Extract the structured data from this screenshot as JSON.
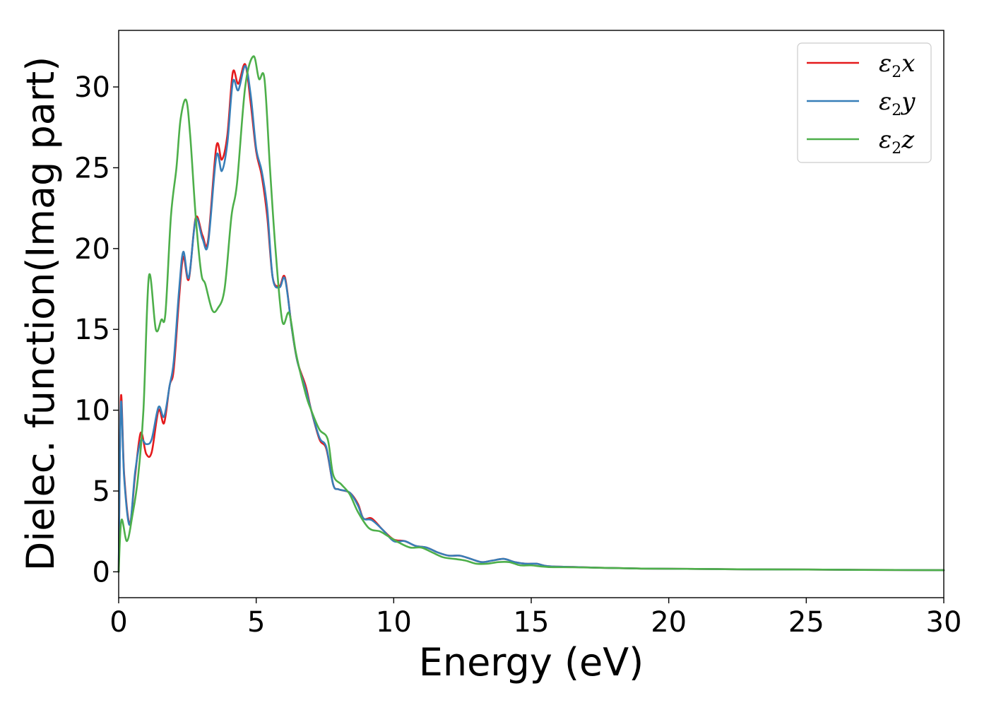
{
  "chart_data": {
    "type": "line",
    "xlabel": "Energy (eV)",
    "ylabel": "Dielec. function(Imag part)",
    "xlim": [
      0,
      30
    ],
    "ylim": [
      -1.6,
      33.5
    ],
    "xticks": [
      0,
      5,
      10,
      15,
      20,
      25,
      30
    ],
    "yticks": [
      0,
      5,
      10,
      15,
      20,
      25,
      30
    ],
    "grid": false,
    "legend_position": "top-right",
    "series": [
      {
        "name": "ε2x",
        "legend_base": "ε",
        "legend_sub": "2",
        "legend_tail": "x",
        "color": "#e41a1c",
        "points": [
          [
            0,
            0
          ],
          [
            0.08,
            10.8
          ],
          [
            0.2,
            6
          ],
          [
            0.4,
            3
          ],
          [
            0.6,
            6
          ],
          [
            0.8,
            8.6
          ],
          [
            1.0,
            7.3
          ],
          [
            1.2,
            7.4
          ],
          [
            1.45,
            10
          ],
          [
            1.65,
            9.2
          ],
          [
            1.85,
            11.5
          ],
          [
            2.0,
            12.5
          ],
          [
            2.2,
            17
          ],
          [
            2.35,
            19.5
          ],
          [
            2.55,
            18.1
          ],
          [
            2.8,
            21.9
          ],
          [
            3.05,
            20.8
          ],
          [
            3.25,
            20.5
          ],
          [
            3.55,
            26.3
          ],
          [
            3.75,
            25.5
          ],
          [
            3.95,
            27
          ],
          [
            4.15,
            30.9
          ],
          [
            4.35,
            30.2
          ],
          [
            4.6,
            31.4
          ],
          [
            4.8,
            29
          ],
          [
            5.0,
            26
          ],
          [
            5.2,
            24.5
          ],
          [
            5.4,
            22
          ],
          [
            5.6,
            18.2
          ],
          [
            5.85,
            17.7
          ],
          [
            6.05,
            18.2
          ],
          [
            6.3,
            15
          ],
          [
            6.5,
            13
          ],
          [
            6.8,
            11.5
          ],
          [
            7.0,
            10
          ],
          [
            7.3,
            8.2
          ],
          [
            7.55,
            7.6
          ],
          [
            7.8,
            5.4
          ],
          [
            8.0,
            5.1
          ],
          [
            8.4,
            4.9
          ],
          [
            8.7,
            4.2
          ],
          [
            8.9,
            3.3
          ],
          [
            9.2,
            3.3
          ],
          [
            9.6,
            2.6
          ],
          [
            10.0,
            2.0
          ],
          [
            10.4,
            1.9
          ],
          [
            10.8,
            1.6
          ],
          [
            11.2,
            1.5
          ],
          [
            11.6,
            1.2
          ],
          [
            12.0,
            1.0
          ],
          [
            12.4,
            1.0
          ],
          [
            12.8,
            0.8
          ],
          [
            13.2,
            0.6
          ],
          [
            13.6,
            0.7
          ],
          [
            14.0,
            0.8
          ],
          [
            14.4,
            0.6
          ],
          [
            14.8,
            0.5
          ],
          [
            15.2,
            0.5
          ],
          [
            15.6,
            0.35
          ],
          [
            16.5,
            0.3
          ],
          [
            17.5,
            0.25
          ],
          [
            19,
            0.2
          ],
          [
            21,
            0.18
          ],
          [
            23,
            0.15
          ],
          [
            25,
            0.14
          ],
          [
            27,
            0.12
          ],
          [
            30,
            0.1
          ]
        ]
      },
      {
        "name": "ε2y",
        "legend_base": "ε",
        "legend_sub": "2",
        "legend_tail": "y",
        "color": "#377eb8",
        "points": [
          [
            0,
            0
          ],
          [
            0.08,
            10.4
          ],
          [
            0.2,
            5.8
          ],
          [
            0.4,
            2.9
          ],
          [
            0.6,
            6.2
          ],
          [
            0.8,
            8.1
          ],
          [
            1.0,
            7.9
          ],
          [
            1.2,
            8.2
          ],
          [
            1.45,
            10.2
          ],
          [
            1.65,
            9.6
          ],
          [
            1.85,
            11.5
          ],
          [
            2.0,
            13
          ],
          [
            2.2,
            17.5
          ],
          [
            2.35,
            19.8
          ],
          [
            2.55,
            18.2
          ],
          [
            2.8,
            21.8
          ],
          [
            3.05,
            20.6
          ],
          [
            3.25,
            20.3
          ],
          [
            3.55,
            25.7
          ],
          [
            3.75,
            24.8
          ],
          [
            3.95,
            26.5
          ],
          [
            4.15,
            30.3
          ],
          [
            4.35,
            29.8
          ],
          [
            4.6,
            31.3
          ],
          [
            4.8,
            29.5
          ],
          [
            5.0,
            26.2
          ],
          [
            5.2,
            24.8
          ],
          [
            5.4,
            22.5
          ],
          [
            5.6,
            18.2
          ],
          [
            5.85,
            17.6
          ],
          [
            6.05,
            18.1
          ],
          [
            6.3,
            15
          ],
          [
            6.5,
            13
          ],
          [
            6.8,
            11.3
          ],
          [
            7.0,
            10
          ],
          [
            7.3,
            8.3
          ],
          [
            7.55,
            7.7
          ],
          [
            7.8,
            5.4
          ],
          [
            8.0,
            5.1
          ],
          [
            8.4,
            4.9
          ],
          [
            8.7,
            4.1
          ],
          [
            8.9,
            3.3
          ],
          [
            9.2,
            3.2
          ],
          [
            9.6,
            2.6
          ],
          [
            10.0,
            1.9
          ],
          [
            10.4,
            1.9
          ],
          [
            10.8,
            1.6
          ],
          [
            11.2,
            1.5
          ],
          [
            11.6,
            1.2
          ],
          [
            12.0,
            1.0
          ],
          [
            12.4,
            1.0
          ],
          [
            12.8,
            0.8
          ],
          [
            13.2,
            0.6
          ],
          [
            13.6,
            0.7
          ],
          [
            14.0,
            0.8
          ],
          [
            14.4,
            0.6
          ],
          [
            14.8,
            0.5
          ],
          [
            15.2,
            0.5
          ],
          [
            15.6,
            0.35
          ],
          [
            16.5,
            0.3
          ],
          [
            17.5,
            0.25
          ],
          [
            19,
            0.2
          ],
          [
            21,
            0.18
          ],
          [
            23,
            0.15
          ],
          [
            25,
            0.14
          ],
          [
            27,
            0.12
          ],
          [
            30,
            0.1
          ]
        ]
      },
      {
        "name": "ε2z",
        "legend_base": "ε",
        "legend_sub": "2",
        "legend_tail": "z",
        "color": "#4daf4a",
        "points": [
          [
            0,
            0
          ],
          [
            0.1,
            3.2
          ],
          [
            0.3,
            1.9
          ],
          [
            0.5,
            3.5
          ],
          [
            0.7,
            5.8
          ],
          [
            0.9,
            10
          ],
          [
            1.1,
            18.3
          ],
          [
            1.35,
            15
          ],
          [
            1.55,
            15.6
          ],
          [
            1.7,
            16
          ],
          [
            1.9,
            22
          ],
          [
            2.1,
            25
          ],
          [
            2.25,
            28
          ],
          [
            2.45,
            29.2
          ],
          [
            2.6,
            27
          ],
          [
            2.8,
            22
          ],
          [
            3.0,
            18.5
          ],
          [
            3.15,
            17.8
          ],
          [
            3.4,
            16.2
          ],
          [
            3.6,
            16.3
          ],
          [
            3.85,
            17.5
          ],
          [
            4.1,
            22
          ],
          [
            4.3,
            24
          ],
          [
            4.6,
            30
          ],
          [
            4.9,
            31.9
          ],
          [
            5.1,
            30.5
          ],
          [
            5.3,
            30.5
          ],
          [
            5.5,
            25
          ],
          [
            5.7,
            20
          ],
          [
            5.95,
            15.5
          ],
          [
            6.2,
            16
          ],
          [
            6.45,
            13.5
          ],
          [
            6.8,
            11
          ],
          [
            7.0,
            10
          ],
          [
            7.3,
            8.8
          ],
          [
            7.6,
            8.2
          ],
          [
            7.8,
            6
          ],
          [
            8.1,
            5.4
          ],
          [
            8.4,
            4.8
          ],
          [
            8.7,
            3.7
          ],
          [
            9.1,
            2.7
          ],
          [
            9.5,
            2.5
          ],
          [
            9.8,
            2.2
          ],
          [
            10.2,
            1.8
          ],
          [
            10.6,
            1.5
          ],
          [
            11.0,
            1.5
          ],
          [
            11.4,
            1.2
          ],
          [
            11.8,
            0.9
          ],
          [
            12.2,
            0.8
          ],
          [
            12.6,
            0.7
          ],
          [
            13.0,
            0.5
          ],
          [
            13.4,
            0.5
          ],
          [
            13.8,
            0.6
          ],
          [
            14.2,
            0.6
          ],
          [
            14.6,
            0.4
          ],
          [
            15.0,
            0.4
          ],
          [
            15.6,
            0.3
          ],
          [
            16.5,
            0.28
          ],
          [
            17.5,
            0.25
          ],
          [
            19,
            0.2
          ],
          [
            21,
            0.18
          ],
          [
            23,
            0.15
          ],
          [
            25,
            0.14
          ],
          [
            27,
            0.12
          ],
          [
            30,
            0.1
          ]
        ]
      }
    ]
  }
}
